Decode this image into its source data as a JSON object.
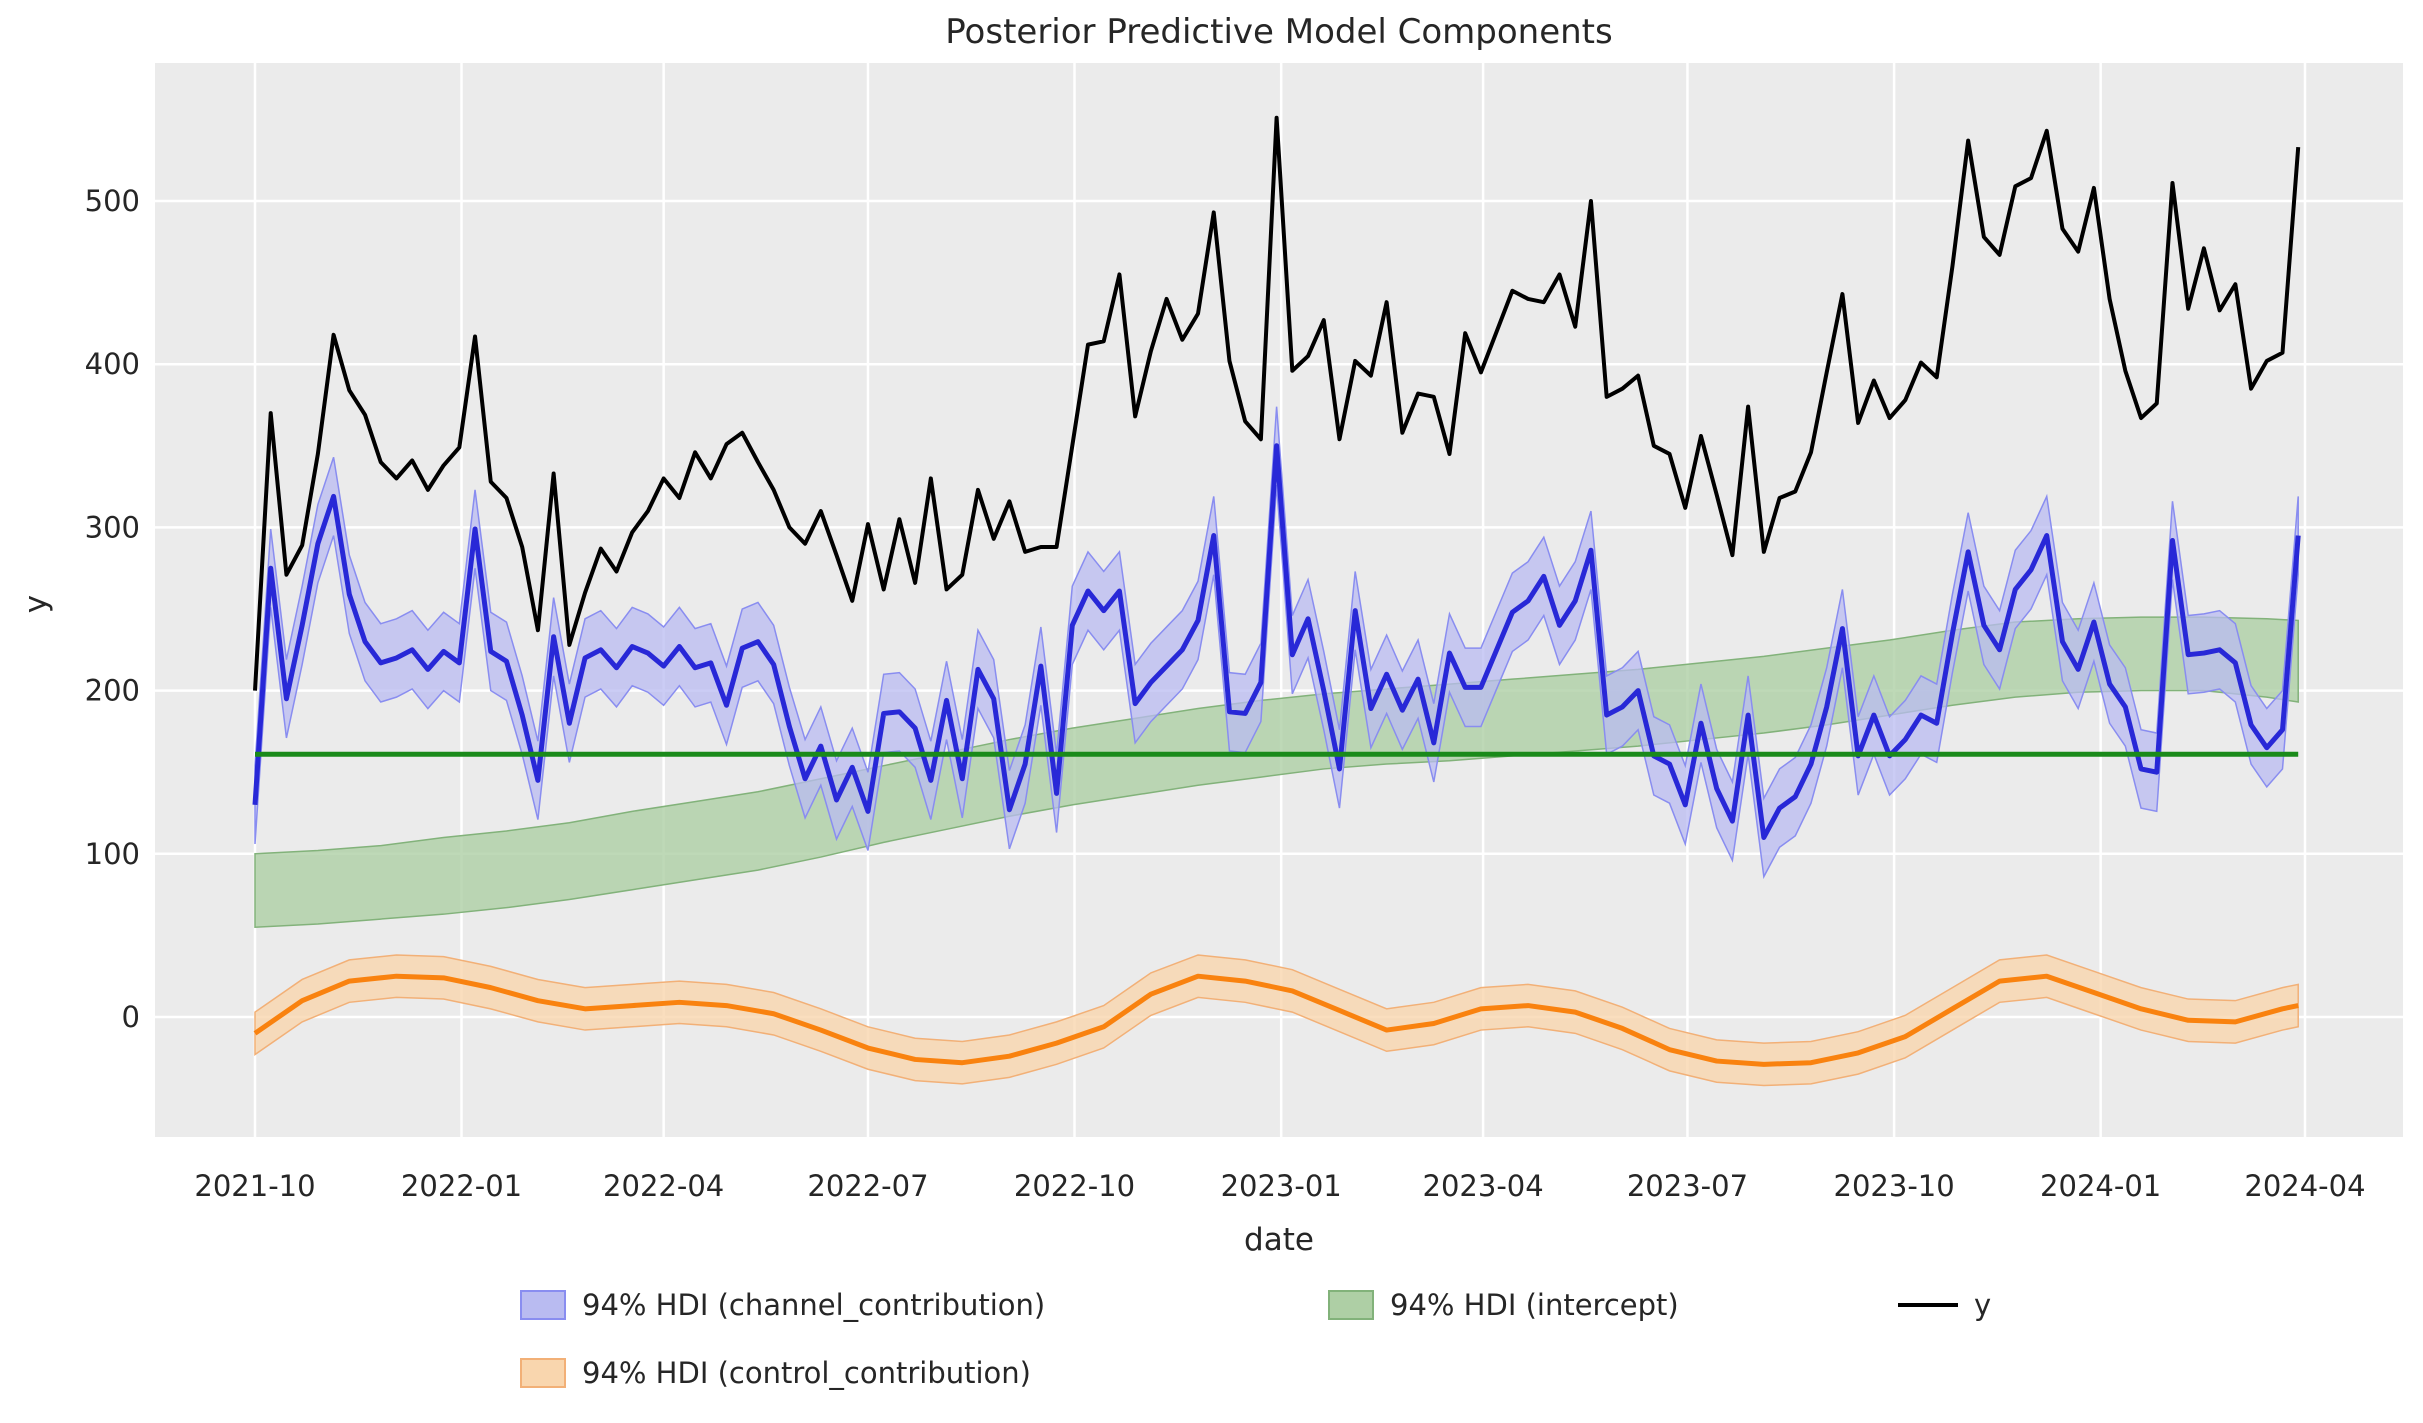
{
  "figure": {
    "title": "Posterior Predictive Model Components",
    "xlabel": "date",
    "ylabel": "y",
    "bg": "#ffffff",
    "plot_bg": "#ebebeb",
    "grid_color": "#ffffff",
    "text_color": "#262626"
  },
  "legend": {
    "items": [
      {
        "label": "94% HDI (channel_contribution)",
        "swatch_fill": "#b9bbf1",
        "swatch_edge": "#898df0",
        "kind": "patch"
      },
      {
        "label": "94% HDI (intercept)",
        "swatch_fill": "#aecfa5",
        "swatch_edge": "#82b27a",
        "kind": "patch"
      },
      {
        "label": "y",
        "line_color": "#000000",
        "kind": "line"
      },
      {
        "label": "94% HDI (control_contribution)",
        "swatch_fill": "#f9d6ae",
        "swatch_edge": "#f2b077",
        "kind": "patch"
      }
    ]
  },
  "chart_data": {
    "type": "line",
    "title": "Posterior Predictive Model Components",
    "xlabel": "date",
    "ylabel": "y",
    "x_start_date": "2021-10-01",
    "x_step_days": 7,
    "n_points": 131,
    "ylim": [
      -70,
      585
    ],
    "grid": true,
    "legend_position": "bottom",
    "y_ticks": [
      0,
      100,
      200,
      300,
      400,
      500
    ],
    "x_ticks": {
      "labels": [
        "2021-10",
        "2022-01",
        "2022-04",
        "2022-07",
        "2022-10",
        "2023-01",
        "2023-04",
        "2023-07",
        "2023-10",
        "2024-01",
        "2024-04"
      ],
      "week_offsets": [
        0,
        13.14,
        26,
        39,
        52.14,
        65.29,
        78.14,
        91.14,
        104.29,
        117.43,
        130.43
      ]
    },
    "series": [
      {
        "name": "y",
        "kind": "line",
        "color": "#000000",
        "width": 4,
        "values": [
          200,
          370,
          271,
          289,
          345,
          418,
          384,
          369,
          340,
          330,
          341,
          323,
          338,
          349,
          417,
          328,
          318,
          288,
          237,
          333,
          228,
          260,
          287,
          273,
          297,
          310,
          330,
          318,
          346,
          330,
          351,
          358,
          340,
          323,
          300,
          290,
          310,
          283,
          255,
          302,
          262,
          305,
          266,
          330,
          262,
          271,
          323,
          293,
          316,
          285,
          288,
          288,
          350,
          412,
          414,
          455,
          368,
          408,
          440,
          415,
          431,
          493,
          402,
          365,
          354,
          551,
          396,
          405,
          427,
          354,
          402,
          393,
          438,
          358,
          382,
          380,
          345,
          419,
          395,
          420,
          445,
          440,
          438,
          455,
          423,
          500,
          380,
          385,
          393,
          350,
          345,
          312,
          356,
          320,
          283,
          374,
          285,
          318,
          322,
          346,
          395,
          443,
          364,
          390,
          367,
          378,
          401,
          392,
          460,
          537,
          478,
          467,
          509,
          514,
          543,
          483,
          469,
          508,
          440,
          396,
          367,
          376,
          511,
          434,
          471,
          433,
          449,
          385,
          402,
          407,
          533
        ]
      },
      {
        "name": "94% HDI (channel_contribution)",
        "kind": "mean_with_band",
        "line_color": "#2828d7",
        "line_width": 5,
        "band_fill": "#b9bbf1",
        "band_edge": "#898df0",
        "band_opacity": 0.75,
        "hdi_half_width": 24,
        "values": [
          130,
          275,
          195,
          240,
          290,
          319,
          259,
          230,
          217,
          220,
          225,
          213,
          224,
          217,
          299,
          224,
          218,
          185,
          145,
          233,
          180,
          220,
          225,
          214,
          227,
          223,
          215,
          227,
          214,
          217,
          191,
          226,
          230,
          216,
          178,
          146,
          166,
          133,
          153,
          126,
          186,
          187,
          177,
          145,
          194,
          146,
          213,
          195,
          127,
          155,
          215,
          137,
          240,
          261,
          249,
          261,
          192,
          205,
          215,
          225,
          243,
          295,
          187,
          186,
          205,
          350,
          222,
          244,
          200,
          152,
          249,
          189,
          210,
          188,
          207,
          168,
          223,
          202,
          202,
          225,
          248,
          255,
          270,
          240,
          255,
          286,
          185,
          190,
          200,
          160,
          155,
          130,
          180,
          140,
          120,
          185,
          110,
          128,
          135,
          155,
          190,
          238,
          160,
          185,
          160,
          170,
          185,
          180,
          235,
          285,
          240,
          225,
          262,
          274,
          295,
          230,
          213,
          242,
          204,
          190,
          152,
          150,
          292,
          222,
          223,
          225,
          217,
          179,
          165,
          176,
          295
        ]
      },
      {
        "name": "94% HDI (intercept)",
        "kind": "band_anchored",
        "band_fill": "#aecfa5",
        "band_edge": "#82b27a",
        "band_opacity": 0.8,
        "week_index": [
          0,
          4,
          8,
          12,
          16,
          20,
          24,
          28,
          32,
          36,
          40,
          44,
          48,
          52,
          56,
          60,
          64,
          68,
          72,
          76,
          80,
          84,
          88,
          92,
          96,
          100,
          104,
          108,
          112,
          116,
          120,
          124,
          128,
          130
        ],
        "lo": [
          55,
          57,
          60,
          63,
          67,
          72,
          78,
          84,
          90,
          98,
          107,
          115,
          123,
          130,
          136,
          142,
          147,
          152,
          155,
          157,
          160,
          163,
          166,
          170,
          174,
          179,
          185,
          191,
          196,
          199,
          200,
          200,
          196,
          193
        ],
        "hi": [
          100,
          102,
          105,
          110,
          114,
          119,
          126,
          132,
          138,
          146,
          154,
          162,
          170,
          177,
          183,
          189,
          194,
          198,
          201,
          204,
          207,
          210,
          213,
          217,
          221,
          226,
          231,
          237,
          242,
          244,
          245,
          245,
          244,
          243
        ]
      },
      {
        "name": "intercept",
        "kind": "hline",
        "color": "#1a8a1a",
        "width": 5,
        "value": 161
      },
      {
        "name": "94% HDI (control_contribution)",
        "kind": "mean_with_band_anchored",
        "line_color": "#f9820f",
        "line_width": 5,
        "band_fill": "#f9d6ae",
        "band_edge": "#f2b077",
        "band_opacity": 0.8,
        "hdi_half_width": 13,
        "week_index": [
          0,
          3,
          6,
          9,
          12,
          15,
          18,
          21,
          24,
          27,
          30,
          33,
          36,
          39,
          42,
          45,
          48,
          51,
          54,
          57,
          60,
          63,
          66,
          69,
          72,
          75,
          78,
          81,
          84,
          87,
          90,
          93,
          96,
          99,
          102,
          105,
          108,
          111,
          114,
          117,
          120,
          123,
          126,
          129,
          130
        ],
        "values": [
          -10,
          10,
          22,
          25,
          24,
          18,
          10,
          5,
          7,
          9,
          7,
          2,
          -8,
          -19,
          -26,
          -28,
          -24,
          -16,
          -6,
          14,
          25,
          22,
          16,
          4,
          -8,
          -4,
          5,
          7,
          3,
          -7,
          -20,
          -27,
          -29,
          -28,
          -22,
          -12,
          5,
          22,
          25,
          15,
          5,
          -2,
          -3,
          5,
          7
        ]
      }
    ]
  }
}
